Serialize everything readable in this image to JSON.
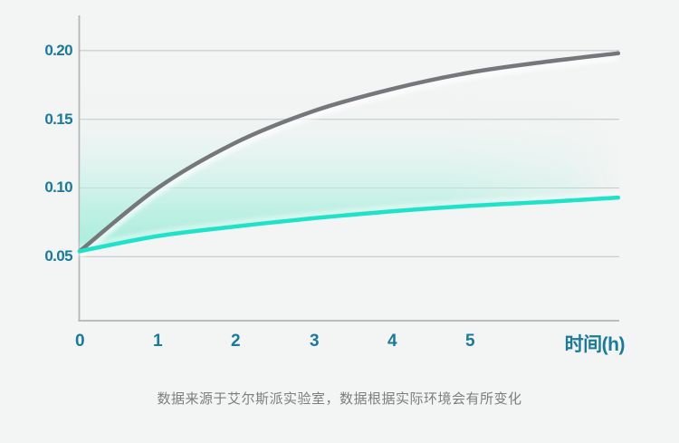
{
  "caption": "数据来源于艾尔斯派实验室，数据根据实际环境会有所变化",
  "colors": {
    "background": "#f3f4f4",
    "accent_label": "#1a7a9b",
    "upper_line": "#75777a",
    "lower_line": "#1fe3c8",
    "band_mint": "#a9eedd",
    "gridline": "#c7c9c9",
    "axis_line": "#b4b6b7",
    "caption_text": "#7d7d7d"
  },
  "chart_data": {
    "type": "line",
    "title": "",
    "xlabel": "时间(h)",
    "ylabel": "",
    "x_ticks": [
      0,
      1,
      2,
      3,
      4,
      5
    ],
    "y_ticks": [
      0.05,
      0.1,
      0.15,
      0.2
    ],
    "xlim": [
      0,
      6.9
    ],
    "ylim": [
      0,
      0.22
    ],
    "grid": "horizontal",
    "legend": "none",
    "band_fill_between_series": true,
    "series": [
      {
        "name": "upper-gray-curve",
        "color": "#75777a",
        "x": [
          0,
          1,
          2,
          3,
          4,
          5,
          6,
          6.9
        ],
        "values": [
          0.054,
          0.1,
          0.133,
          0.156,
          0.172,
          0.184,
          0.192,
          0.198
        ]
      },
      {
        "name": "lower-teal-curve",
        "color": "#1fe3c8",
        "x": [
          0,
          1,
          2,
          3,
          4,
          5,
          6,
          6.9
        ],
        "values": [
          0.054,
          0.065,
          0.072,
          0.078,
          0.083,
          0.087,
          0.09,
          0.093
        ]
      }
    ]
  }
}
